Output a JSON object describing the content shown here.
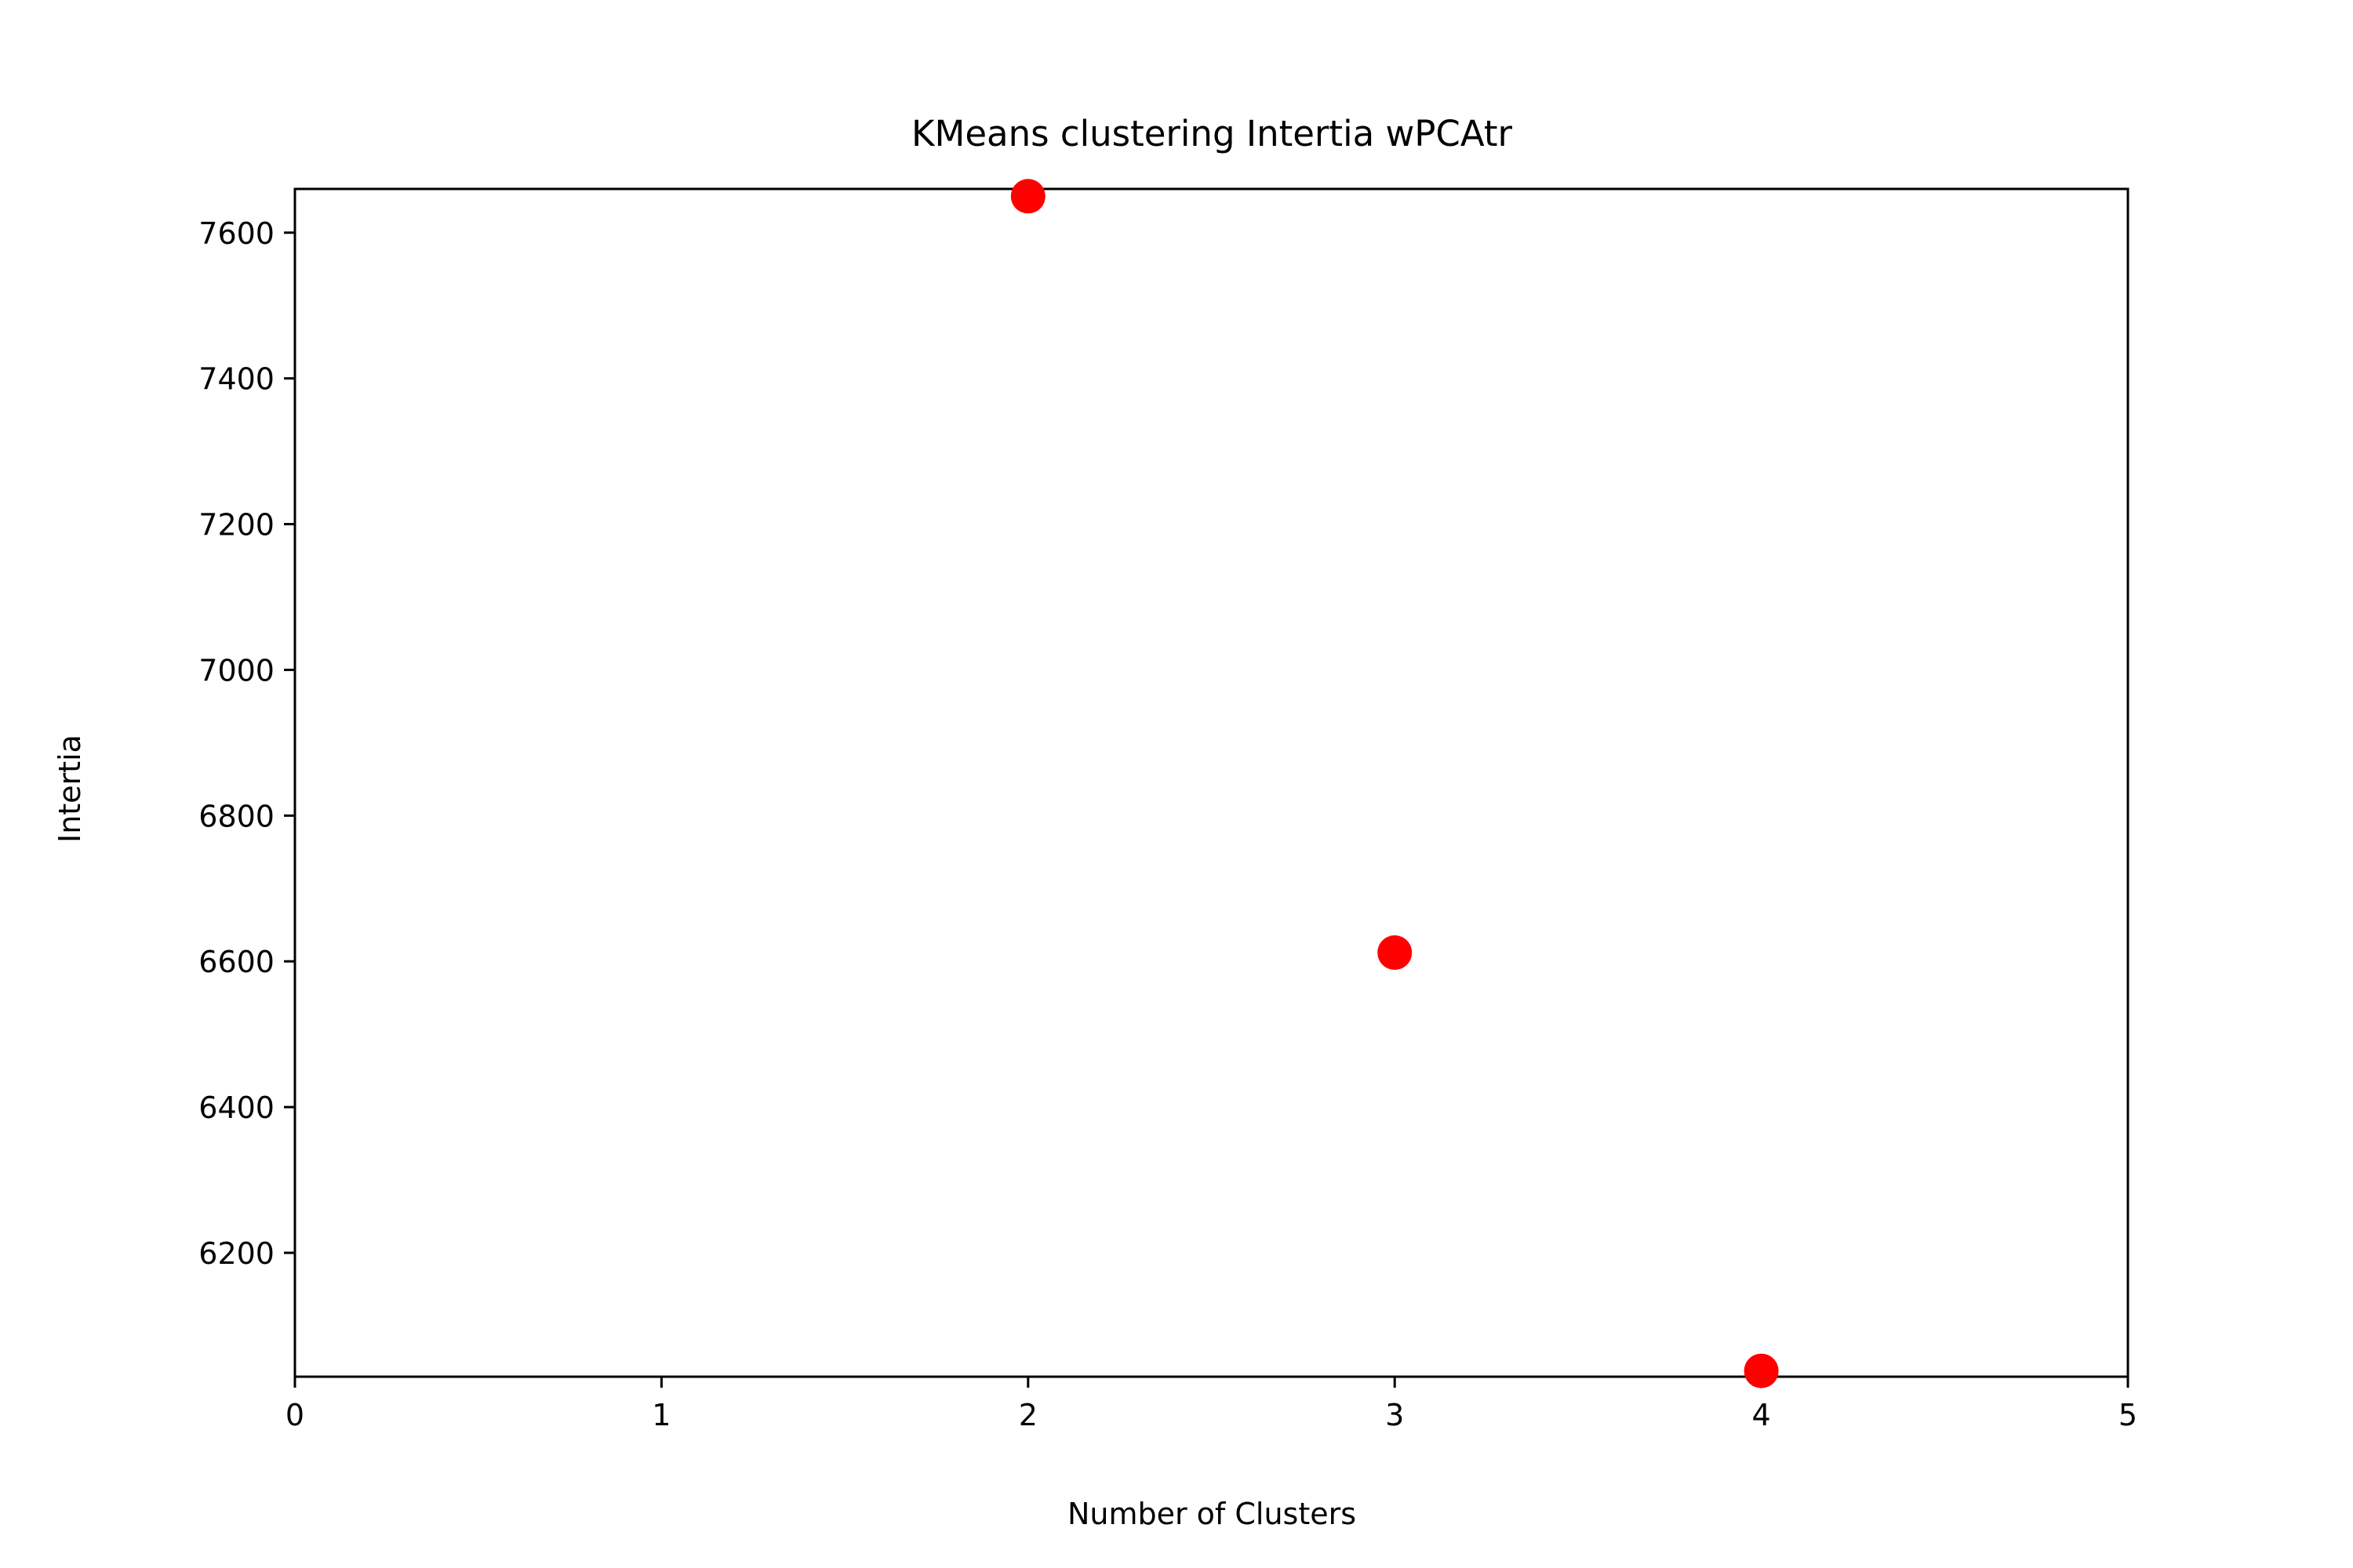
{
  "chart_data": {
    "type": "scatter",
    "title": "KMeans clustering Intertia wPCAtr",
    "xlabel": "Number of Clusters",
    "ylabel": "Intertia",
    "x": [
      2,
      3,
      4
    ],
    "y": [
      7650,
      6612,
      6038
    ],
    "xlim": [
      0,
      5
    ],
    "ylim": [
      6030,
      7660
    ],
    "xticks": [
      0,
      1,
      2,
      3,
      4,
      5
    ],
    "yticks": [
      6200,
      6400,
      6600,
      6800,
      7000,
      7200,
      7400,
      7600
    ],
    "marker_color": "#ff0000",
    "grid": false,
    "legend": false
  }
}
